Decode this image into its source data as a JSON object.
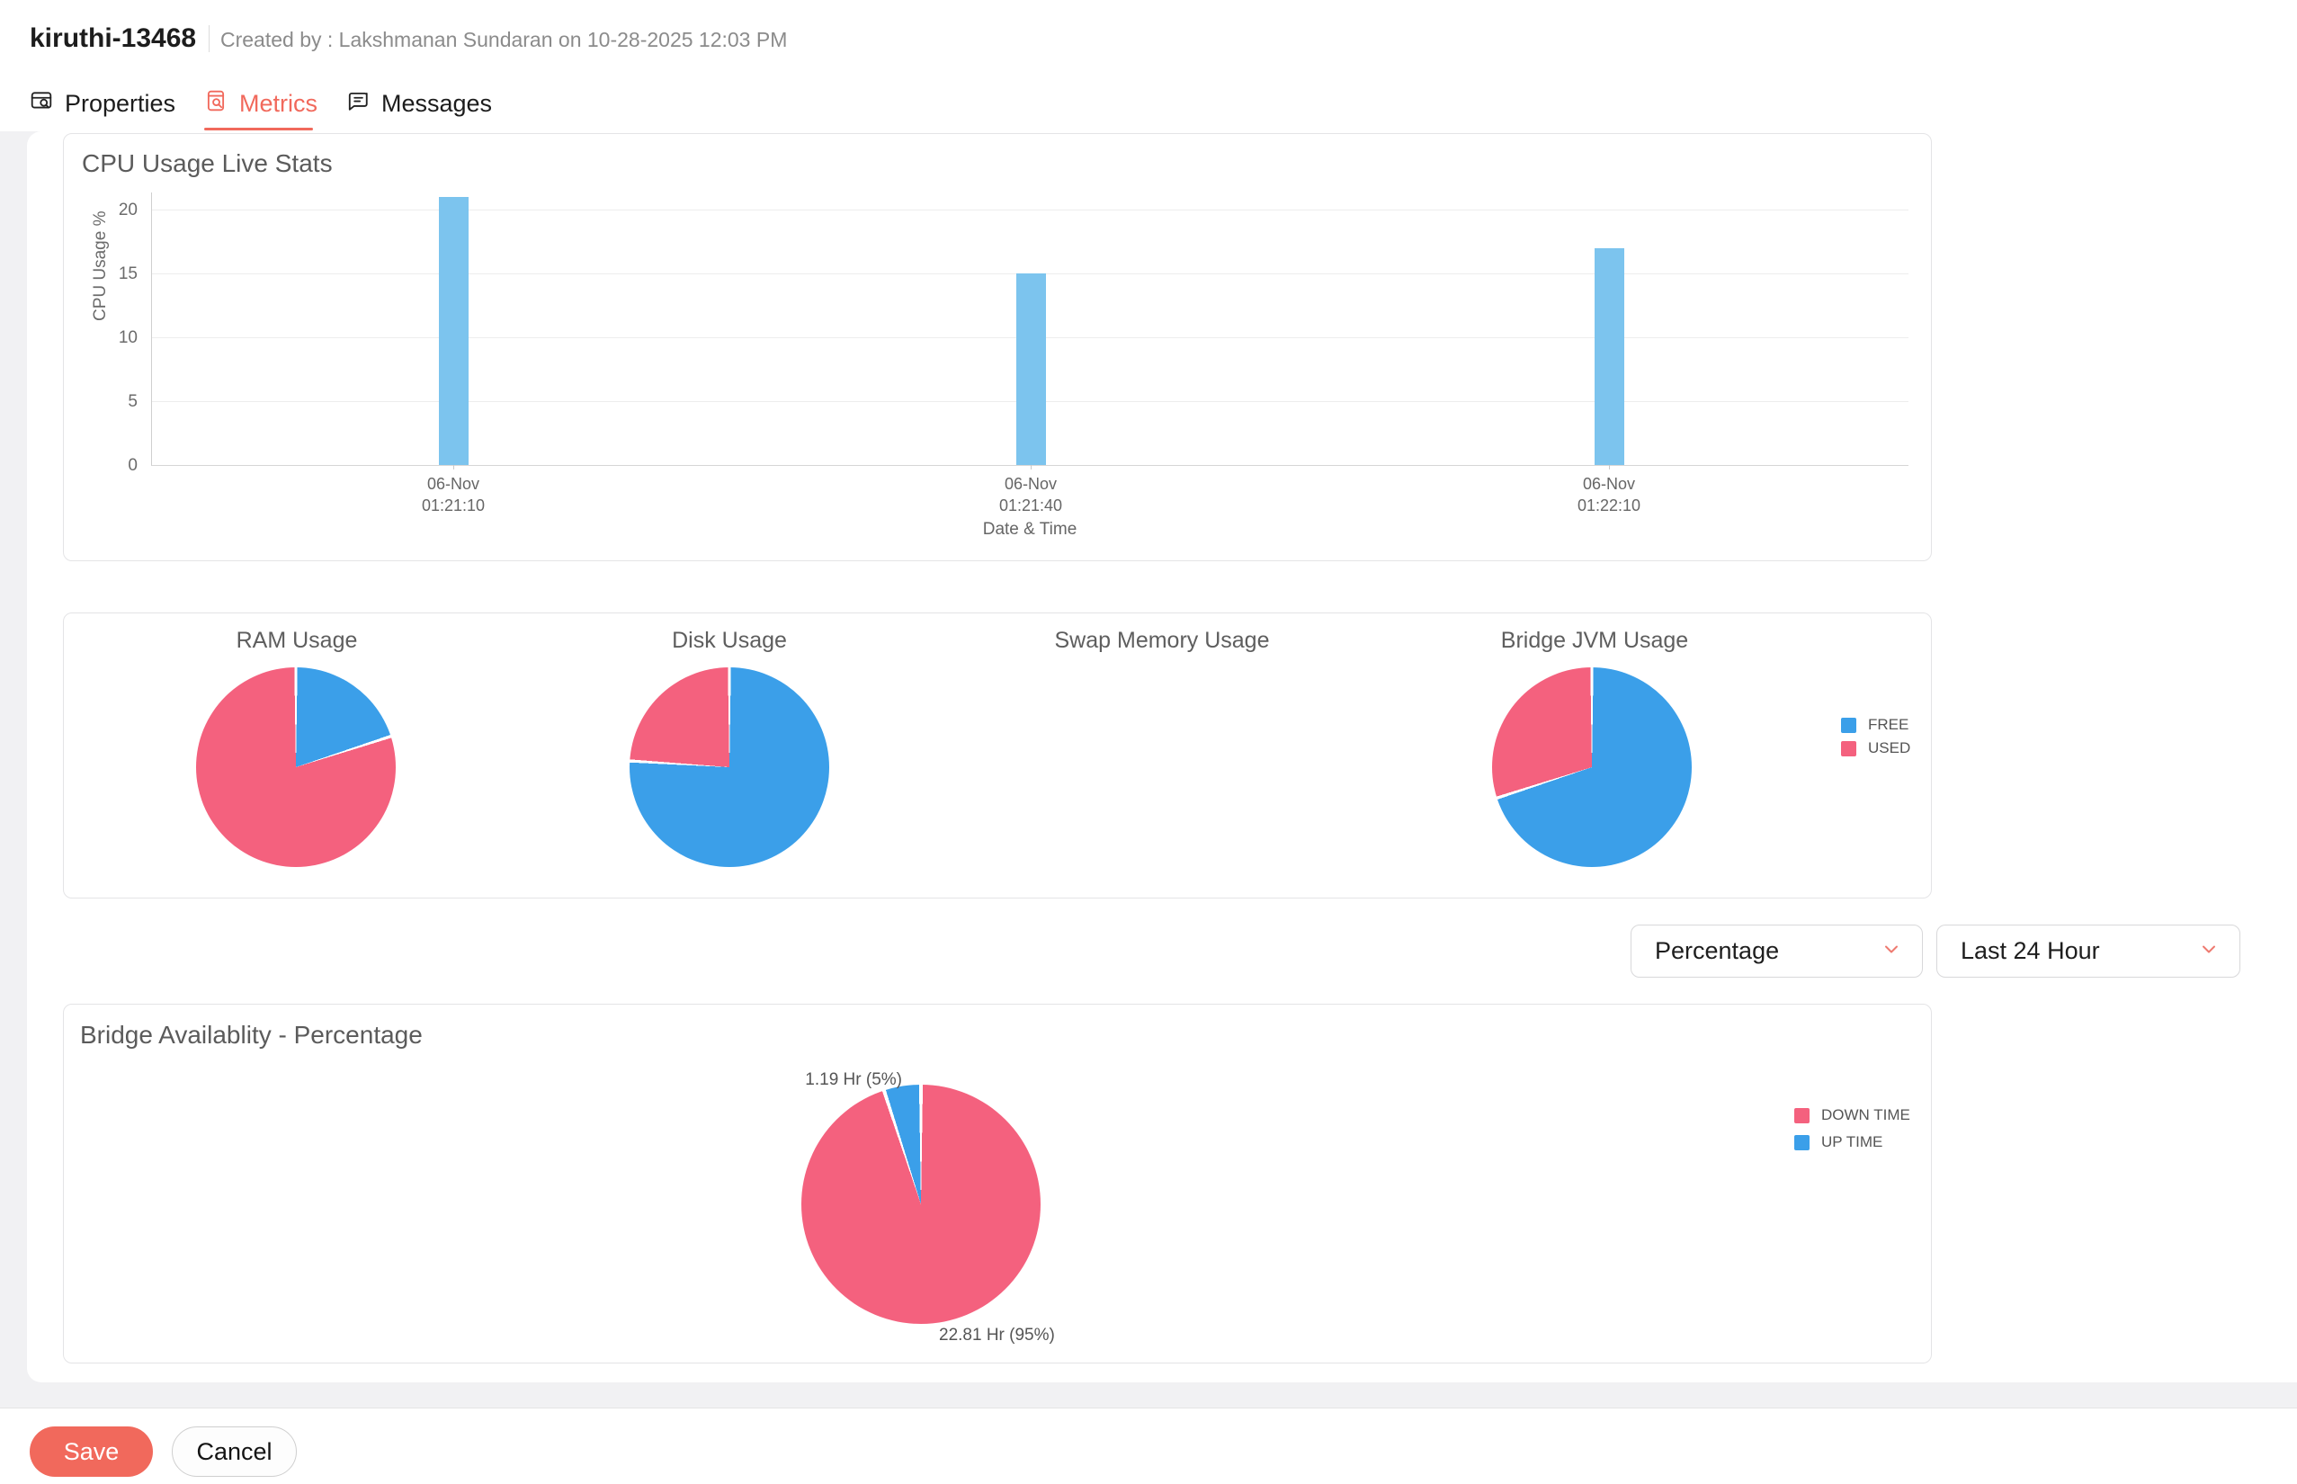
{
  "header": {
    "title": "kiruthi-13468",
    "created_by": "Created by : Lakshmanan Sundaran on 10-28-2025 12:03 PM"
  },
  "tabs": {
    "properties": "Properties",
    "metrics": "Metrics",
    "messages": "Messages",
    "active_tab": "Metrics"
  },
  "controls": {
    "metric_type": "Percentage",
    "time_range": "Last 24 Hour"
  },
  "footer": {
    "save": "Save",
    "cancel": "Cancel"
  },
  "colors": {
    "free": "#3b9fe9",
    "used": "#f4617e",
    "bar": "#7cc4ee",
    "accent": "#f1695c",
    "down_time": "#f4617e",
    "up_time": "#3b9fe9"
  },
  "chart_data": [
    {
      "type": "bar",
      "title": "CPU Usage Live Stats",
      "xlabel": "Date & Time",
      "ylabel": "CPU Usage %",
      "ylim": [
        0,
        20
      ],
      "grid": true,
      "yticks": [
        "20",
        "15",
        "10",
        "5",
        "0"
      ],
      "categories": [
        "06-Nov 01:21:10",
        "06-Nov 01:21:40",
        "06-Nov 01:22:10"
      ],
      "tick_lines": [
        [
          "06-Nov",
          "01:21:10"
        ],
        [
          "06-Nov",
          "01:21:40"
        ],
        [
          "06-Nov",
          "01:22:10"
        ]
      ],
      "values": [
        21,
        15,
        17
      ],
      "bar_color": "#7cc4ee"
    },
    {
      "type": "pie",
      "title": "RAM Usage",
      "legend_position": "right",
      "slices": [
        {
          "name": "FREE",
          "pct": 20,
          "color": "#3b9fe9"
        },
        {
          "name": "USED",
          "pct": 80,
          "color": "#f4617e"
        }
      ]
    },
    {
      "type": "pie",
      "title": "Disk Usage",
      "slices": [
        {
          "name": "FREE",
          "pct": 76,
          "color": "#3b9fe9"
        },
        {
          "name": "USED",
          "pct": 24,
          "color": "#f4617e"
        }
      ]
    },
    {
      "type": "pie",
      "title": "Swap Memory Usage",
      "slices": []
    },
    {
      "type": "pie",
      "title": "Bridge JVM Usage",
      "slices": [
        {
          "name": "FREE",
          "pct": 70,
          "color": "#3b9fe9"
        },
        {
          "name": "USED",
          "pct": 30,
          "color": "#f4617e"
        }
      ]
    },
    {
      "type": "pie",
      "title": "Bridge Availablity - Percentage",
      "legend_position": "right",
      "slices": [
        {
          "name": "DOWN TIME",
          "pct": 95,
          "color": "#f4617e",
          "label": "22.81 Hr (95%)"
        },
        {
          "name": "UP TIME",
          "pct": 5,
          "color": "#3b9fe9",
          "label": "1.19 Hr (5%)"
        }
      ]
    }
  ]
}
